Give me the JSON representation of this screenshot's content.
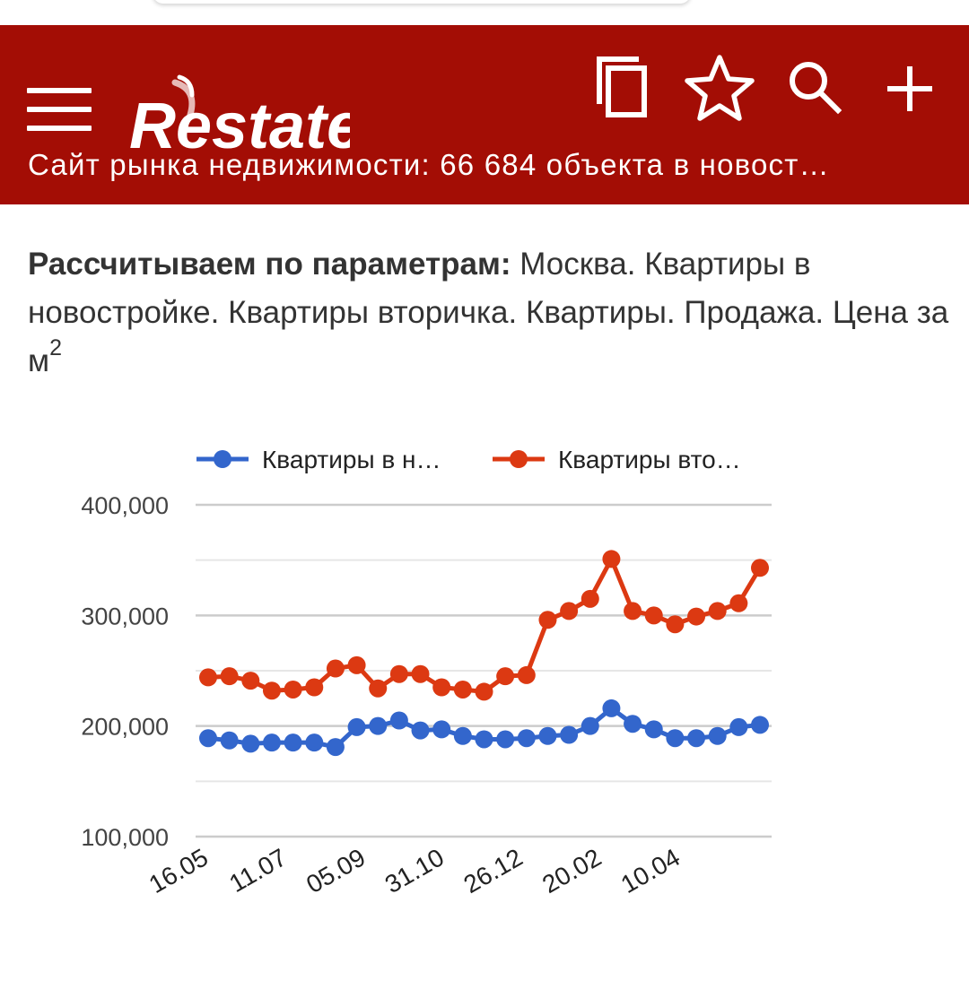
{
  "header": {
    "logo_text": "Restate",
    "subtitle": "Сайт рынка недвижимости: 66 684 объекта в новост…",
    "icons": [
      "menu-icon",
      "copy-icon",
      "star-icon",
      "search-icon",
      "plus-icon"
    ],
    "background_color": "#a30d05"
  },
  "params": {
    "label": "Рассчитываем по параметрам:",
    "text": "Москва. Квартиры в новостройке. Квартиры вторичка. Квартиры. Продажа. Цена за м",
    "sup": "2"
  },
  "chart_data": {
    "type": "line",
    "legend_position": "top",
    "ylim": [
      100000,
      400000
    ],
    "y_ticks": [
      "400,000",
      "300,000",
      "200,000",
      "100,000"
    ],
    "x_tick_labels": [
      "16.05",
      "11.07",
      "05.09",
      "31.10",
      "26.12",
      "20.02",
      "10.04"
    ],
    "grid": true,
    "series": [
      {
        "name": "Квартиры в н…",
        "color": "#3366cc",
        "values": [
          189000,
          187000,
          184000,
          185000,
          185000,
          185000,
          181000,
          199000,
          200000,
          205000,
          196000,
          197000,
          191000,
          188000,
          188000,
          189000,
          191000,
          192000,
          200000,
          216000,
          202000,
          197000,
          189000,
          189000,
          191000,
          199000,
          201000
        ]
      },
      {
        "name": "Квартиры вто…",
        "color": "#dc3912",
        "values": [
          244000,
          245000,
          241000,
          232000,
          233000,
          235000,
          252000,
          255000,
          234000,
          247000,
          247000,
          235000,
          233000,
          231000,
          245000,
          246000,
          296000,
          304000,
          315000,
          351000,
          304000,
          300000,
          292000,
          299000,
          304000,
          311000,
          343000
        ]
      }
    ]
  }
}
